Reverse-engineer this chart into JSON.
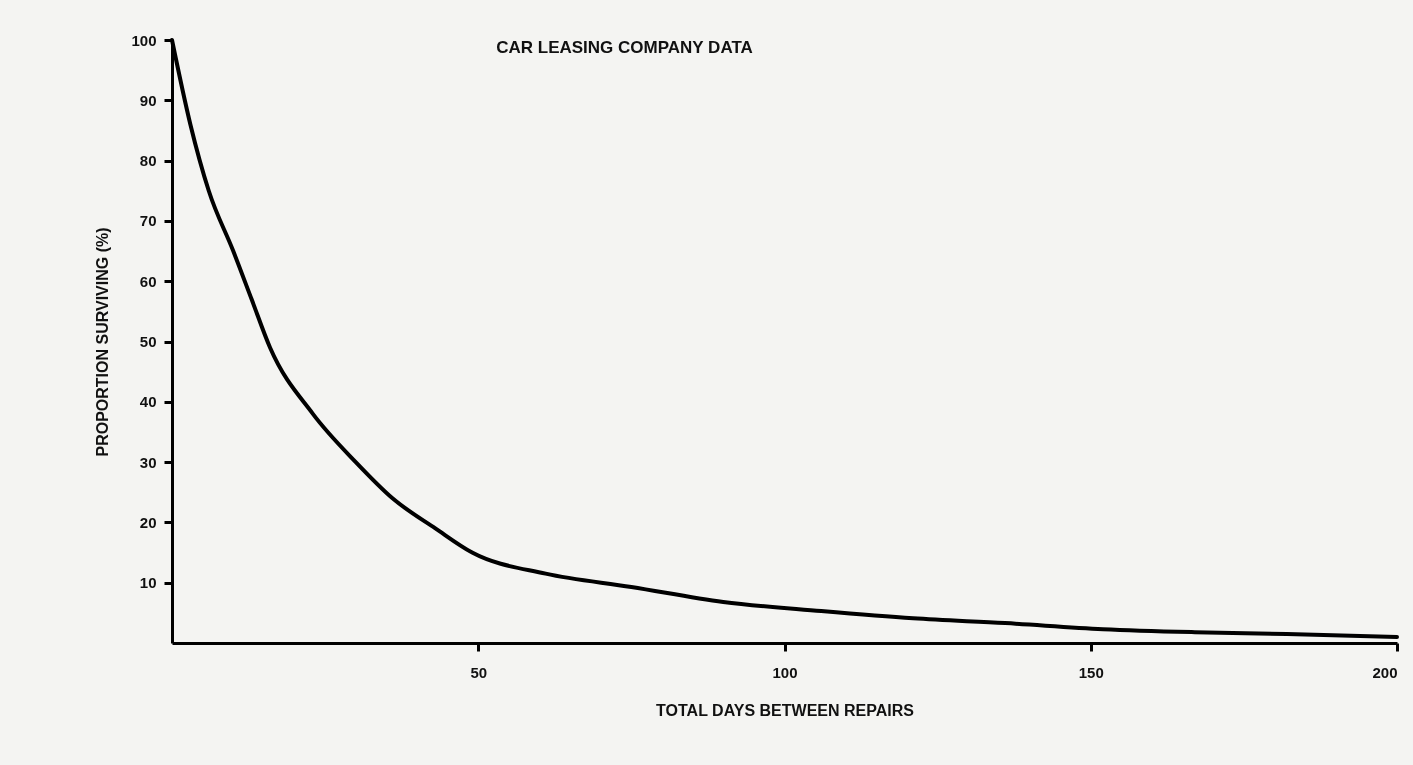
{
  "chart_data": {
    "type": "line",
    "title": "CAR LEASING COMPANY DATA",
    "xlabel": "TOTAL DAYS BETWEEN REPAIRS",
    "ylabel": "PROPORTION SURVIVING (%)",
    "x": [
      0,
      3,
      6,
      10,
      13,
      16,
      23,
      30,
      36,
      43,
      49,
      61,
      75,
      90,
      106,
      121,
      136,
      152,
      167,
      182,
      200
    ],
    "series": [
      {
        "color": "#000000",
        "values": [
          100,
          86,
          75,
          65,
          57,
          49,
          38,
          30,
          24,
          19,
          15,
          11.5,
          9.3,
          6.8,
          5.3,
          4.1,
          3.3,
          2.3,
          1.8,
          1.5,
          1.0
        ]
      }
    ],
    "xlim": [
      0,
      200
    ],
    "xticks": [
      50,
      100,
      150,
      200
    ],
    "ylim": [
      0,
      100
    ],
    "yticks": [
      10,
      20,
      30,
      40,
      50,
      60,
      70,
      80,
      90,
      100
    ],
    "grid": false,
    "legend": false,
    "marker": "none",
    "line_style": "solid"
  }
}
